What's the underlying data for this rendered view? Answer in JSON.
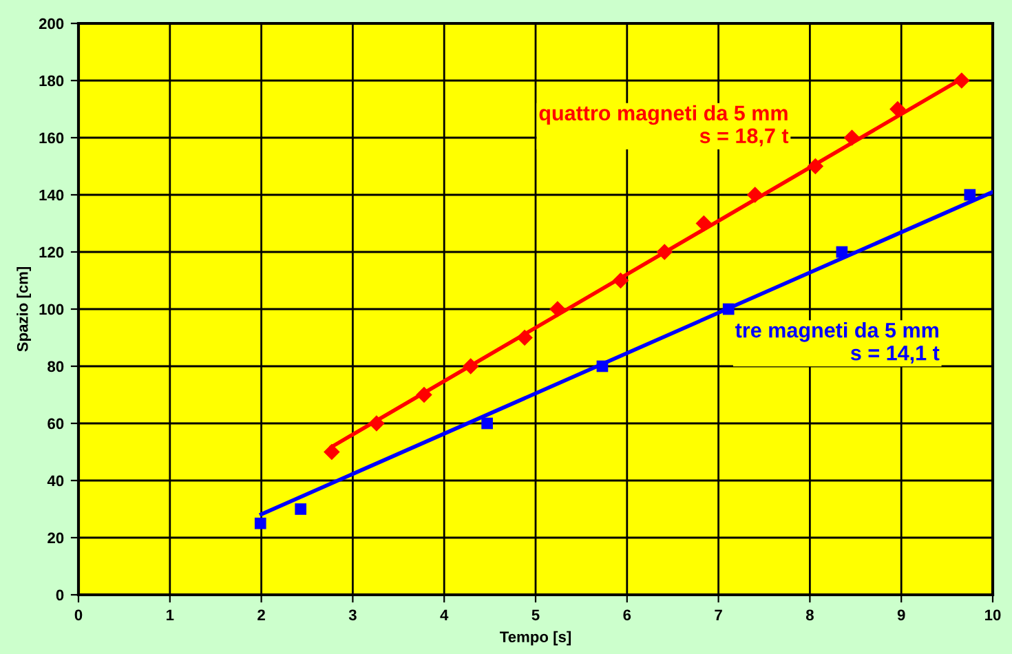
{
  "chart_data": {
    "type": "scatter",
    "xlabel": "Tempo [s]",
    "ylabel": "Spazio [cm]",
    "xlim": [
      0,
      10
    ],
    "ylim": [
      0,
      200
    ],
    "xticks": [
      0,
      1,
      2,
      3,
      4,
      5,
      6,
      7,
      8,
      9,
      10
    ],
    "yticks": [
      0,
      20,
      40,
      60,
      80,
      100,
      120,
      140,
      160,
      180,
      200
    ],
    "grid": true,
    "annotations": [
      "quattro magneti da 5 mm\ns = 18,7 t",
      "tre magneti da 5 mm\ns = 14,1 t"
    ],
    "series": [
      {
        "marker": "diamond",
        "color": "#ff0000",
        "x": [
          2.77,
          3.26,
          3.78,
          4.29,
          4.88,
          5.24,
          5.93,
          6.41,
          6.84,
          7.4,
          8.06,
          8.46,
          8.96,
          9.66
        ],
        "values": [
          50,
          60,
          70,
          80,
          90,
          100,
          110,
          120,
          130,
          140,
          150,
          160,
          170,
          180
        ]
      },
      {
        "type": "line",
        "color": "#ff0000",
        "x": [
          2.77,
          9.66
        ],
        "values": [
          51.8,
          180.6
        ]
      },
      {
        "marker": "square",
        "color": "#0000ff",
        "x": [
          1.99,
          2.43,
          4.47,
          5.73,
          7.11,
          8.35,
          9.75
        ],
        "values": [
          25,
          30,
          60,
          80,
          100,
          120,
          140
        ]
      },
      {
        "type": "line",
        "color": "#0000ff",
        "x": [
          2,
          10
        ],
        "values": [
          28.2,
          141
        ]
      }
    ]
  }
}
